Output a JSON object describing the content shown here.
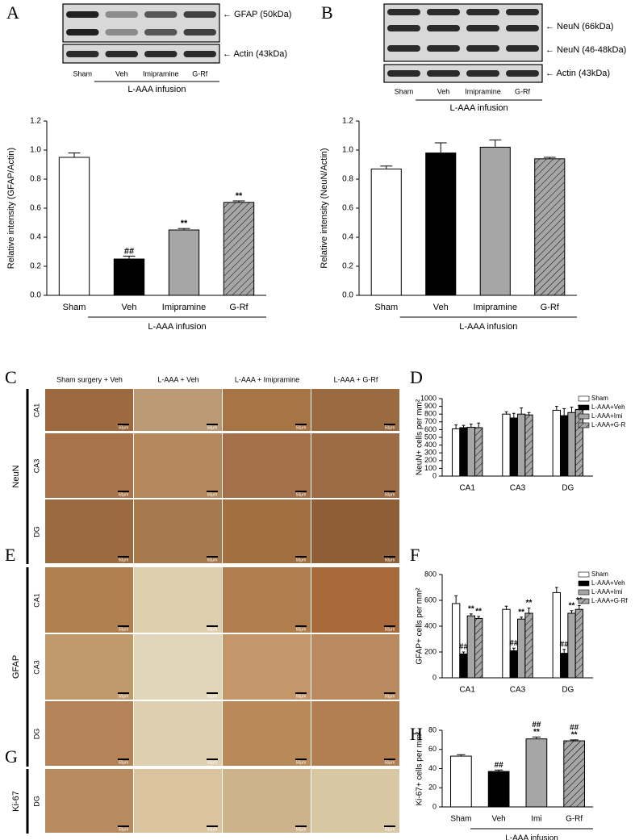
{
  "panel_letters": [
    "A",
    "B",
    "C",
    "D",
    "E",
    "F",
    "G",
    "H"
  ],
  "blots": {
    "A": {
      "bands": [
        "← GFAP (50kDa)",
        "← Actin (43kDa)"
      ],
      "lanes": [
        "Sham",
        "Veh",
        "Imipramine",
        "G-Rf"
      ],
      "group_label": "L-AAA infusion"
    },
    "B": {
      "bands": [
        "← NeuN (66kDa)",
        "← NeuN (46-48kDa)",
        "← Actin (43kDa)"
      ],
      "lanes": [
        "Sham",
        "Veh",
        "Imipramine",
        "G-Rf"
      ],
      "group_label": "L-AAA infusion"
    }
  },
  "micrographs": {
    "columns": [
      "Sham surgery + Veh",
      "L-AAA + Veh",
      "L-AAA + Imipramine",
      "L-AAA + G-Rf"
    ],
    "scale_label": "50μm",
    "groups": [
      {
        "name": "NeuN",
        "rows": [
          "CA1",
          "CA3",
          "DG"
        ]
      },
      {
        "name": "GFAP",
        "rows": [
          "CA1",
          "CA3",
          "DG"
        ]
      },
      {
        "name": "Ki-67",
        "rows": [
          "DG"
        ]
      }
    ]
  },
  "chart_data": [
    {
      "type": "bar",
      "ylabel": "Relative intensity (GFAP/Actin)",
      "categories": [
        "Sham",
        "Veh",
        "Imipramine",
        "G-Rf"
      ],
      "values": [
        0.95,
        0.25,
        0.45,
        0.64
      ],
      "errors": [
        0.03,
        0.02,
        0.01,
        0.01
      ],
      "colors": [
        "#ffffff",
        "#000000",
        "#a6a6a6",
        "#a6a6a6"
      ],
      "hatch": [
        false,
        false,
        false,
        true
      ],
      "annotations": [
        null,
        [
          "##"
        ],
        [
          "**"
        ],
        [
          "**"
        ]
      ],
      "group_label": "L-AAA infusion",
      "ylim": [
        0,
        1.2
      ],
      "yticks": [
        {
          "value": 0,
          "label": "0.0"
        },
        0.2,
        0.4,
        0.6,
        0.8,
        {
          "value": 1,
          "label": "1.0"
        },
        1.2
      ]
    },
    {
      "type": "bar",
      "ylabel": "Relative intensity (NeuN/Actin)",
      "categories": [
        "Sham",
        "Veh",
        "Imipramine",
        "G-Rf"
      ],
      "values": [
        0.87,
        0.98,
        1.02,
        0.94
      ],
      "errors": [
        0.02,
        0.07,
        0.05,
        0.01
      ],
      "colors": [
        "#ffffff",
        "#000000",
        "#a6a6a6",
        "#a6a6a6"
      ],
      "hatch": [
        false,
        false,
        false,
        true
      ],
      "group_label": "L-AAA infusion",
      "ylim": [
        0,
        1.2
      ],
      "yticks": [
        {
          "value": 0,
          "label": "0.0"
        },
        0.2,
        0.4,
        0.6,
        0.8,
        {
          "value": 1,
          "label": "1.0"
        },
        1.2
      ]
    },
    {
      "type": "bar",
      "ylabel": "NeuN+ cells per mm²",
      "categories": [
        "CA1",
        "CA3",
        "DG"
      ],
      "series": [
        {
          "name": "Sham",
          "color": "#ffffff",
          "hatch": false,
          "values": [
            610,
            800,
            850
          ],
          "errors": [
            50,
            30,
            50
          ]
        },
        {
          "name": "L-AAA+Veh",
          "color": "#000000",
          "hatch": false,
          "values": [
            625,
            750,
            780
          ],
          "errors": [
            30,
            60,
            90
          ]
        },
        {
          "name": "L-AAA+Imi",
          "color": "#a6a6a6",
          "hatch": false,
          "values": [
            630,
            800,
            820
          ],
          "errors": [
            40,
            80,
            70
          ]
        },
        {
          "name": "L-AAA+G-R",
          "color": "#a6a6a6",
          "hatch": true,
          "values": [
            625,
            790,
            860
          ],
          "errors": [
            60,
            30,
            50
          ]
        }
      ],
      "legend": "upper right",
      "ylim": [
        0,
        1000
      ],
      "yticks": [
        0,
        100,
        200,
        300,
        400,
        500,
        600,
        700,
        800,
        900,
        1000
      ]
    },
    {
      "type": "bar",
      "ylabel": "GFAP+ cells per mm²",
      "categories": [
        "CA1",
        "CA3",
        "DG"
      ],
      "series": [
        {
          "name": "Sham",
          "color": "#ffffff",
          "hatch": false,
          "values": [
            575,
            530,
            660
          ],
          "errors": [
            60,
            25,
            40
          ]
        },
        {
          "name": "L-AAA+Veh",
          "color": "#000000",
          "hatch": false,
          "values": [
            185,
            210,
            190
          ],
          "errors": [
            15,
            20,
            30
          ],
          "annotations": [
            [
              "##"
            ],
            [
              "##"
            ],
            [
              "##"
            ]
          ]
        },
        {
          "name": "L-AAA+Imi",
          "color": "#a6a6a6",
          "hatch": false,
          "values": [
            480,
            455,
            500
          ],
          "errors": [
            15,
            15,
            20
          ],
          "annotations": [
            [
              "**"
            ],
            [
              "**"
            ],
            [
              "**"
            ]
          ]
        },
        {
          "name": "L-AAA+G-Rf",
          "color": "#a6a6a6",
          "hatch": true,
          "values": [
            460,
            500,
            530
          ],
          "errors": [
            15,
            40,
            30
          ],
          "annotations": [
            [
              "**"
            ],
            [
              "**"
            ],
            [
              "**"
            ]
          ]
        }
      ],
      "legend": "upper right",
      "ylim": [
        0,
        800
      ],
      "yticks": [
        0,
        200,
        400,
        600,
        800
      ]
    },
    {
      "type": "bar",
      "ylabel": "Ki-67+ cells per mm²",
      "categories": [
        "Sham",
        "Veh",
        "Imi",
        "G-Rf"
      ],
      "values": [
        53,
        37,
        71,
        69
      ],
      "errors": [
        1.5,
        1.5,
        2,
        1
      ],
      "colors": [
        "#ffffff",
        "#000000",
        "#a6a6a6",
        "#a6a6a6"
      ],
      "hatch": [
        false,
        false,
        false,
        true
      ],
      "annotations": [
        null,
        [
          "##"
        ],
        [
          "##",
          "**"
        ],
        [
          "##",
          "**"
        ]
      ],
      "group_label": "L-AAA infusion",
      "ylim": [
        0,
        80
      ],
      "yticks": [
        0,
        20,
        40,
        60,
        80
      ]
    }
  ]
}
